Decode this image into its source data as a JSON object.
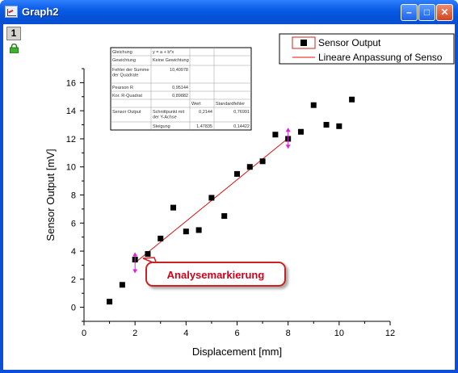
{
  "window": {
    "title": "Graph2",
    "layer_number": "1",
    "icon": "graph-window-icon",
    "buttons": [
      "minimize-button",
      "maximize-button",
      "close-button"
    ]
  },
  "colors": {
    "titlebar": "#0a5ce6",
    "fit_line": "#e01010",
    "marker": "#000000",
    "callout_text": "#d0021b",
    "analysis_marker": "#e020e0"
  },
  "stats_table": {
    "rows": [
      [
        "Gleichung",
        "y = a + b*x",
        "",
        ""
      ],
      [
        "Gewichtung",
        "Keine Gewichtung",
        "",
        ""
      ],
      [
        "Fehler der Summe der Quadrate",
        "10,40978",
        "",
        ""
      ],
      [
        "Pearson R",
        "0,95144",
        "",
        ""
      ],
      [
        "Kor. R-Quadrat",
        "0,89882",
        "",
        ""
      ],
      [
        "",
        "",
        "Wert",
        "Standardfehler"
      ],
      [
        "Sensor Output",
        "Schnittpunkt mit der Y-Achse",
        "0,2144",
        "0,76991"
      ],
      [
        "",
        "Steigung",
        "1,47835",
        "0,14422"
      ]
    ]
  },
  "legend": [
    {
      "label": "Sensor Output",
      "symbol": "square"
    },
    {
      "label": "Lineare Anpassung of Senso",
      "symbol": "line"
    }
  ],
  "callout": {
    "text": "Analysemarkierung"
  },
  "chart_data": {
    "type": "scatter",
    "xlabel": "Displacement [mm]",
    "ylabel": "Sensor Output [mV]",
    "xlim": [
      0,
      12
    ],
    "ylim": [
      -1,
      17
    ],
    "xticks": [
      0,
      2,
      4,
      6,
      8,
      10,
      12
    ],
    "yticks": [
      0,
      2,
      4,
      6,
      8,
      10,
      12,
      14,
      16
    ],
    "series": [
      {
        "name": "Sensor Output",
        "x": [
          1.0,
          1.5,
          2.0,
          2.5,
          3.0,
          3.5,
          4.0,
          4.5,
          5.0,
          5.5,
          6.0,
          6.5,
          7.0,
          7.5,
          8.0,
          8.5,
          9.0,
          9.5,
          10.0,
          10.5
        ],
        "y": [
          0.4,
          1.6,
          3.4,
          3.8,
          4.9,
          7.1,
          5.4,
          5.5,
          7.8,
          6.5,
          9.5,
          10.0,
          10.4,
          12.3,
          12.0,
          12.5,
          14.4,
          13.0,
          12.9,
          14.8
        ]
      }
    ],
    "fit": {
      "name": "Lineare Anpassung of Senso",
      "intercept": 0.2144,
      "slope": 1.47835,
      "x_range": [
        2,
        8
      ]
    },
    "analysis_markers_x": [
      2,
      8
    ]
  }
}
